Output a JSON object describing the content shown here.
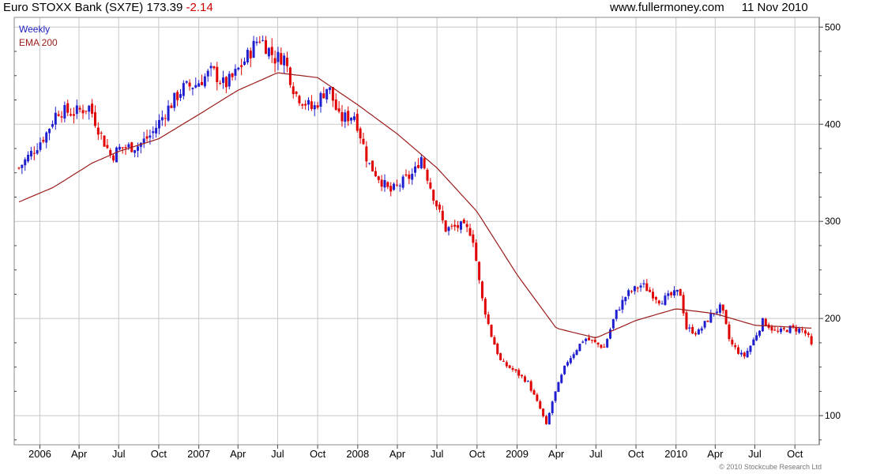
{
  "header": {
    "name": "Euro STOXX Bank (SX7E)",
    "price": "173.39",
    "change": "-2.14",
    "site": "www.fullermoney.com",
    "date": "11 Nov 2010"
  },
  "copyright": "© 2010 Stockcube Research Ltd",
  "colors": {
    "up": "#1f1fd0",
    "down": "#e00000",
    "ema": "#9b1b1b",
    "grid": "#c8c8c8",
    "legend_weekly": "#1f1fbf",
    "legend_ema": "#9b1b1b"
  },
  "chart_data": {
    "type": "candlestick",
    "legend": [
      {
        "name": "Weekly",
        "color": "#1f1fbf"
      },
      {
        "name": "EMA 200",
        "color": "#9b1b1b"
      }
    ],
    "legend_placement": "top-left",
    "y_axis": {
      "position": "right",
      "ylim": [
        70,
        510
      ],
      "ticks": [
        100,
        200,
        300,
        400,
        500
      ]
    },
    "x_axis": {
      "xlim": [
        "2005-11-14",
        "2010-11-15"
      ],
      "ticks": [
        {
          "date": "2006-01-01",
          "label": "2006"
        },
        {
          "date": "2006-04-01",
          "label": "Apr"
        },
        {
          "date": "2006-07-01",
          "label": "Jul"
        },
        {
          "date": "2006-10-01",
          "label": "Oct"
        },
        {
          "date": "2007-01-01",
          "label": "2007"
        },
        {
          "date": "2007-04-01",
          "label": "Apr"
        },
        {
          "date": "2007-07-01",
          "label": "Jul"
        },
        {
          "date": "2007-10-01",
          "label": "Oct"
        },
        {
          "date": "2008-01-01",
          "label": "2008"
        },
        {
          "date": "2008-04-01",
          "label": "Apr"
        },
        {
          "date": "2008-07-01",
          "label": "Jul"
        },
        {
          "date": "2008-10-01",
          "label": "Oct"
        },
        {
          "date": "2009-01-01",
          "label": "2009"
        },
        {
          "date": "2009-04-01",
          "label": "Apr"
        },
        {
          "date": "2009-07-01",
          "label": "Jul"
        },
        {
          "date": "2009-10-01",
          "label": "Oct"
        },
        {
          "date": "2010-01-01",
          "label": "2010"
        },
        {
          "date": "2010-04-01",
          "label": "Apr"
        },
        {
          "date": "2010-07-01",
          "label": "Jul"
        },
        {
          "date": "2010-10-01",
          "label": "Oct"
        }
      ]
    },
    "grid": true,
    "close_series": [
      [
        "2005-11-14",
        355
      ],
      [
        "2005-12-15",
        372
      ],
      [
        "2006-01-15",
        390
      ],
      [
        "2006-02-10",
        414
      ],
      [
        "2006-03-20",
        412
      ],
      [
        "2006-04-25",
        418
      ],
      [
        "2006-05-25",
        385
      ],
      [
        "2006-06-15",
        366
      ],
      [
        "2006-07-01",
        375
      ],
      [
        "2006-08-15",
        378
      ],
      [
        "2006-09-15",
        390
      ],
      [
        "2006-10-20",
        415
      ],
      [
        "2006-11-25",
        437
      ],
      [
        "2006-12-25",
        441
      ],
      [
        "2007-02-01",
        455
      ],
      [
        "2007-03-01",
        440
      ],
      [
        "2007-03-20",
        448
      ],
      [
        "2007-04-20",
        468
      ],
      [
        "2007-05-20",
        490
      ],
      [
        "2007-06-25",
        468
      ],
      [
        "2007-07-15",
        470
      ],
      [
        "2007-08-10",
        432
      ],
      [
        "2007-09-20",
        415
      ],
      [
        "2007-10-25",
        440
      ],
      [
        "2007-11-20",
        405
      ],
      [
        "2007-12-25",
        410
      ],
      [
        "2008-01-25",
        360
      ],
      [
        "2008-03-15",
        330
      ],
      [
        "2008-05-10",
        350
      ],
      [
        "2008-05-25",
        368
      ],
      [
        "2008-06-20",
        330
      ],
      [
        "2008-07-20",
        292
      ],
      [
        "2008-08-25",
        295
      ],
      [
        "2008-09-20",
        288
      ],
      [
        "2008-10-10",
        225
      ],
      [
        "2008-11-01",
        185
      ],
      [
        "2008-11-25",
        155
      ],
      [
        "2008-12-20",
        148
      ],
      [
        "2009-01-25",
        135
      ],
      [
        "2009-02-25",
        105
      ],
      [
        "2009-03-09",
        90
      ],
      [
        "2009-03-25",
        118
      ],
      [
        "2009-04-25",
        155
      ],
      [
        "2009-06-05",
        180
      ],
      [
        "2009-07-20",
        170
      ],
      [
        "2009-08-15",
        205
      ],
      [
        "2009-09-10",
        225
      ],
      [
        "2009-10-15",
        235
      ],
      [
        "2009-11-25",
        218
      ],
      [
        "2010-01-10",
        228
      ],
      [
        "2010-01-25",
        190
      ],
      [
        "2010-02-20",
        185
      ],
      [
        "2010-03-25",
        205
      ],
      [
        "2010-04-15",
        212
      ],
      [
        "2010-05-05",
        175
      ],
      [
        "2010-06-05",
        160
      ],
      [
        "2010-06-25",
        175
      ],
      [
        "2010-07-20",
        198
      ],
      [
        "2010-08-20",
        185
      ],
      [
        "2010-09-20",
        190
      ],
      [
        "2010-10-20",
        188
      ],
      [
        "2010-11-11",
        173.39
      ]
    ],
    "ema200": [
      [
        "2005-11-14",
        320
      ],
      [
        "2006-02-01",
        335
      ],
      [
        "2006-05-01",
        360
      ],
      [
        "2006-07-01",
        372
      ],
      [
        "2006-10-01",
        385
      ],
      [
        "2007-01-01",
        410
      ],
      [
        "2007-04-01",
        435
      ],
      [
        "2007-07-01",
        453
      ],
      [
        "2007-10-01",
        448
      ],
      [
        "2008-01-01",
        420
      ],
      [
        "2008-04-01",
        390
      ],
      [
        "2008-07-01",
        355
      ],
      [
        "2008-10-01",
        310
      ],
      [
        "2009-01-01",
        245
      ],
      [
        "2009-04-01",
        190
      ],
      [
        "2009-07-01",
        180
      ],
      [
        "2009-10-01",
        198
      ],
      [
        "2010-01-01",
        210
      ],
      [
        "2010-04-01",
        205
      ],
      [
        "2010-07-01",
        193
      ],
      [
        "2010-11-11",
        190
      ]
    ]
  }
}
